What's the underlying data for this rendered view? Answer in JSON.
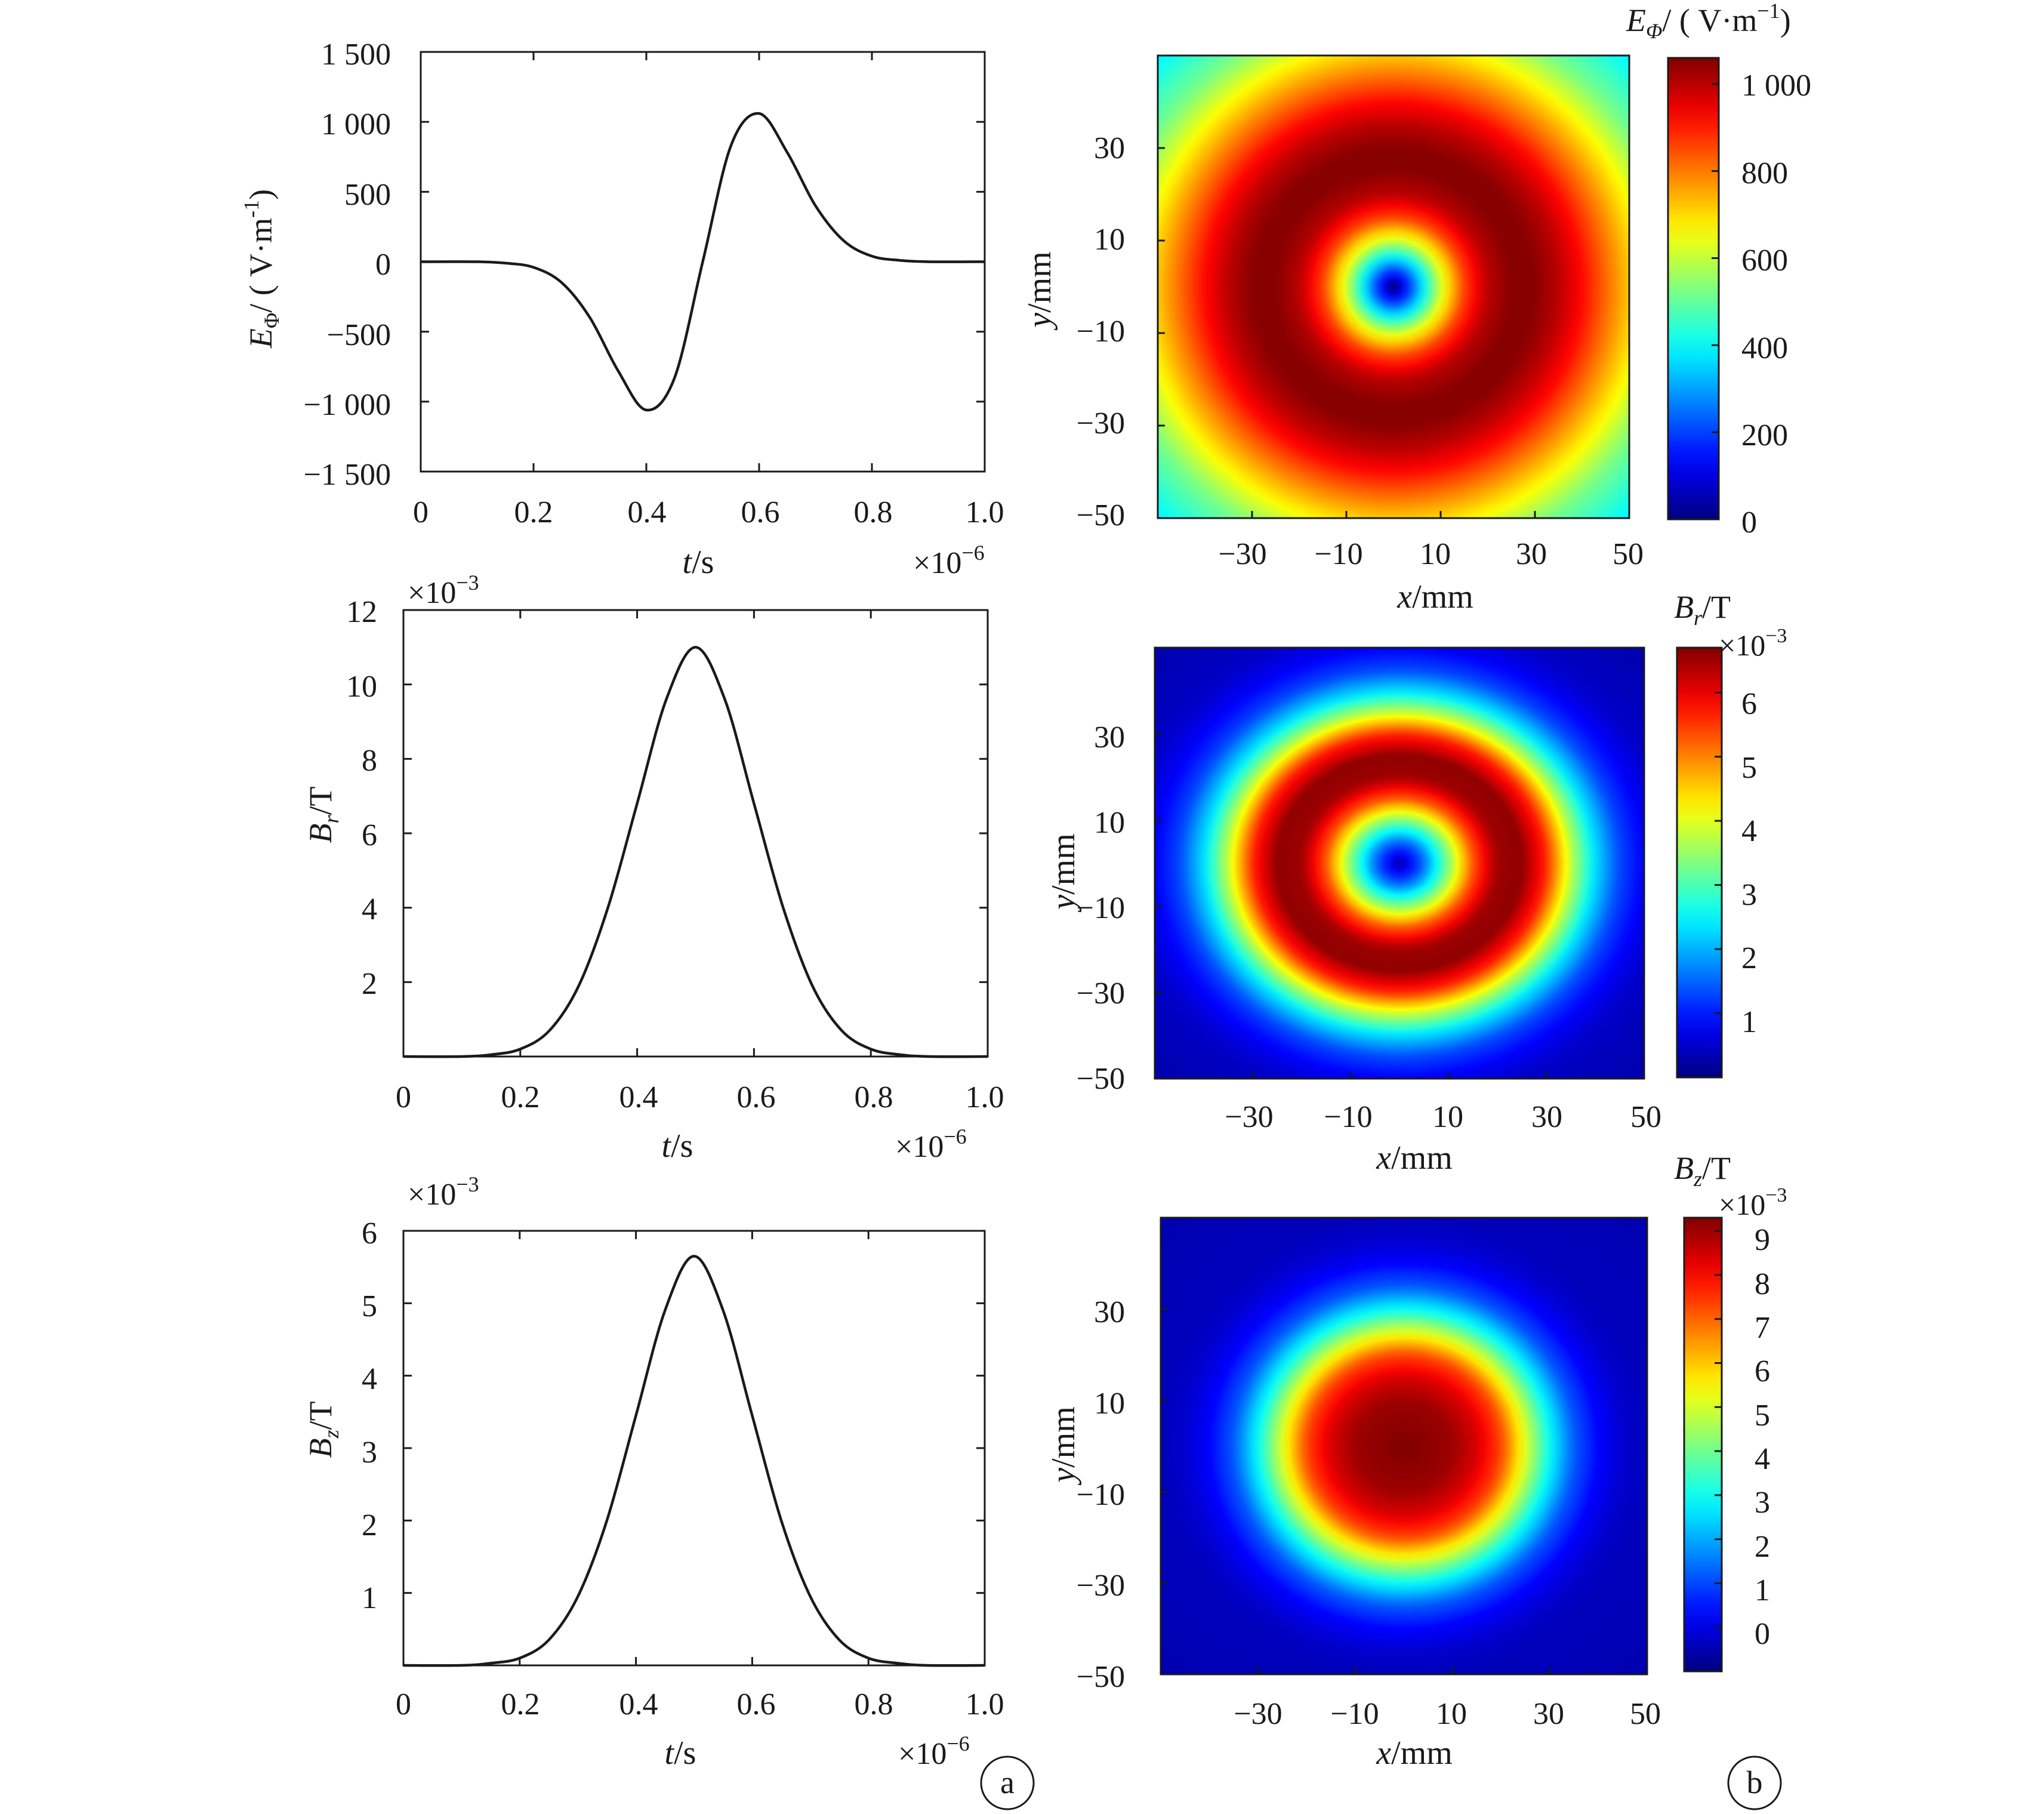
{
  "figure": {
    "panel_labels": [
      "a",
      "b"
    ]
  },
  "chart_data": [
    {
      "id": "ephi_time",
      "type": "line",
      "xlabel_base": "t",
      "xlabel_unit": "/s",
      "ylabel_base": "E",
      "ylabel_sub": "Φ",
      "ylabel_unit": "/ ( V·m",
      "ylabel_sup": "-1",
      "ylabel_close": ")",
      "xlim": [
        0,
        1.0
      ],
      "ylim": [
        -1500,
        1500
      ],
      "x_ticks": [
        "0",
        "0.2",
        "0.4",
        "0.6",
        "0.8",
        "1.0"
      ],
      "x_tick_values": [
        0,
        0.2,
        0.4,
        0.6,
        0.8,
        1.0
      ],
      "y_ticks": [
        "1 500",
        "1 000",
        "500",
        "0",
        "−500",
        "−1 000",
        "−1 500"
      ],
      "y_tick_values": [
        1500,
        1000,
        500,
        0,
        -500,
        -1000,
        -1500
      ],
      "x_multiplier_base": "×10",
      "x_multiplier_exp": "−6",
      "series": [
        {
          "x": [
            0,
            0.1,
            0.15,
            0.2,
            0.25,
            0.3,
            0.35,
            0.4,
            0.45,
            0.5,
            0.55,
            0.6,
            0.65,
            0.7,
            0.75,
            0.8,
            0.85,
            0.9,
            1.0
          ],
          "y": [
            0,
            0,
            -10,
            -40,
            -150,
            -400,
            -780,
            -1060,
            -830,
            0,
            830,
            1060,
            780,
            400,
            150,
            40,
            10,
            0,
            0
          ]
        }
      ]
    },
    {
      "id": "br_time",
      "type": "line",
      "xlabel_base": "t",
      "xlabel_unit": "/s",
      "ylabel_base": "B",
      "ylabel_sub": "r",
      "ylabel_unit": "/T",
      "xlim": [
        0,
        1.0
      ],
      "ylim": [
        0,
        12
      ],
      "x_ticks": [
        "0",
        "0.2",
        "0.4",
        "0.6",
        "0.8",
        "1.0"
      ],
      "x_tick_values": [
        0,
        0.2,
        0.4,
        0.6,
        0.8,
        1.0
      ],
      "y_ticks": [
        "12",
        "10",
        "8",
        "6",
        "4",
        "2"
      ],
      "y_tick_values": [
        12,
        10,
        8,
        6,
        4,
        2
      ],
      "x_multiplier_base": "×10",
      "x_multiplier_exp": "−6",
      "y_multiplier_base": "×10",
      "y_multiplier_exp": "−3",
      "series": [
        {
          "x": [
            0,
            0.1,
            0.15,
            0.2,
            0.25,
            0.3,
            0.35,
            0.4,
            0.45,
            0.5,
            0.55,
            0.6,
            0.65,
            0.7,
            0.75,
            0.8,
            0.85,
            0.9,
            1.0
          ],
          "y": [
            0,
            0,
            0.05,
            0.2,
            0.7,
            1.9,
            4.0,
            6.8,
            9.6,
            11.0,
            9.6,
            6.8,
            4.0,
            1.9,
            0.7,
            0.2,
            0.05,
            0,
            0
          ]
        }
      ]
    },
    {
      "id": "bz_time",
      "type": "line",
      "xlabel_base": "t",
      "xlabel_unit": "/s",
      "ylabel_base": "B",
      "ylabel_sub": "z",
      "ylabel_unit": "/T",
      "xlim": [
        0,
        1.0
      ],
      "ylim": [
        0,
        6
      ],
      "x_ticks": [
        "0",
        "0.2",
        "0.4",
        "0.6",
        "0.8",
        "1.0"
      ],
      "x_tick_values": [
        0,
        0.2,
        0.4,
        0.6,
        0.8,
        1.0
      ],
      "y_ticks": [
        "6",
        "5",
        "4",
        "3",
        "2",
        "1"
      ],
      "y_tick_values": [
        6,
        5,
        4,
        3,
        2,
        1
      ],
      "x_multiplier_base": "×10",
      "x_multiplier_exp": "−6",
      "y_multiplier_base": "×10",
      "y_multiplier_exp": "−3",
      "series": [
        {
          "x": [
            0,
            0.1,
            0.15,
            0.2,
            0.25,
            0.3,
            0.35,
            0.4,
            0.45,
            0.5,
            0.55,
            0.6,
            0.65,
            0.7,
            0.75,
            0.8,
            0.85,
            0.9,
            1.0
          ],
          "y": [
            0,
            0,
            0.03,
            0.1,
            0.35,
            0.95,
            2.0,
            3.45,
            4.9,
            5.65,
            4.9,
            3.45,
            2.0,
            0.95,
            0.35,
            0.1,
            0.03,
            0,
            0
          ]
        }
      ]
    },
    {
      "id": "ephi_map",
      "type": "heatmap",
      "colormap": "jet",
      "xlabel_base": "x",
      "xlabel_unit": "/mm",
      "ylabel_base": "y",
      "ylabel_unit": "/mm",
      "xlim": [
        -50,
        50
      ],
      "ylim": [
        -50,
        50
      ],
      "x_ticks": [
        "−30",
        "−10",
        "10",
        "30",
        "50"
      ],
      "x_tick_values": [
        -30,
        -10,
        10,
        30,
        50
      ],
      "y_ticks": [
        "30",
        "10",
        "−10",
        "−30",
        "−50"
      ],
      "y_tick_values": [
        30,
        10,
        -10,
        -30,
        -50
      ],
      "colorbar_title_base": "E",
      "colorbar_title_sub": "Φ",
      "colorbar_title_unit": "/ ( V·m",
      "colorbar_title_sup": "−1",
      "colorbar_title_close": ")",
      "colorbar_range": [
        0,
        1060
      ],
      "colorbar_ticks": [
        "1 000",
        "800",
        "600",
        "400",
        "200",
        "0"
      ],
      "colorbar_tick_values": [
        1000,
        800,
        600,
        400,
        200,
        0
      ],
      "radial_profile": {
        "r": [
          0,
          5,
          10,
          15,
          20,
          25,
          30,
          35,
          40,
          45,
          50,
          55,
          60,
          71
        ],
        "value": [
          0,
          300,
          620,
          860,
          1000,
          1050,
          1050,
          1000,
          920,
          820,
          720,
          620,
          520,
          380
        ]
      }
    },
    {
      "id": "br_map",
      "type": "heatmap",
      "colormap": "jet",
      "xlabel_base": "x",
      "xlabel_unit": "/mm",
      "ylabel_base": "y",
      "ylabel_unit": "/mm",
      "xlim": [
        -50,
        50
      ],
      "ylim": [
        -50,
        50
      ],
      "x_ticks": [
        "−30",
        "−10",
        "10",
        "30",
        "50"
      ],
      "x_tick_values": [
        -30,
        -10,
        10,
        30,
        50
      ],
      "y_ticks": [
        "30",
        "10",
        "−10",
        "−30",
        "−50"
      ],
      "y_tick_values": [
        30,
        10,
        -10,
        -30,
        -50
      ],
      "colorbar_title_base": "B",
      "colorbar_title_sub": "r",
      "colorbar_title_unit": "/T",
      "colorbar_multiplier_base": "×10",
      "colorbar_multiplier_exp": "−3",
      "colorbar_range": [
        0,
        6.7
      ],
      "colorbar_ticks": [
        "6",
        "5",
        "4",
        "3",
        "2",
        "1"
      ],
      "colorbar_tick_values": [
        6,
        5,
        4,
        3,
        2,
        1
      ],
      "radial_profile": {
        "r": [
          0,
          5,
          10,
          15,
          20,
          25,
          30,
          35,
          40,
          45,
          50,
          55,
          60,
          71
        ],
        "value": [
          0.3,
          1.6,
          3.4,
          5.3,
          6.5,
          6.6,
          5.6,
          3.8,
          2.3,
          1.3,
          0.8,
          0.5,
          0.4,
          0.3
        ]
      }
    },
    {
      "id": "bz_map",
      "type": "heatmap",
      "colormap": "jet",
      "xlabel_base": "x",
      "xlabel_unit": "/mm",
      "ylabel_base": "y",
      "ylabel_unit": "/mm",
      "xlim": [
        -50,
        50
      ],
      "ylim": [
        -50,
        50
      ],
      "x_ticks": [
        "−30",
        "−10",
        "10",
        "30",
        "50"
      ],
      "x_tick_values": [
        -30,
        -10,
        10,
        30,
        50
      ],
      "y_ticks": [
        "30",
        "10",
        "−10",
        "−30",
        "−50"
      ],
      "y_tick_values": [
        30,
        10,
        -10,
        -30,
        -50
      ],
      "colorbar_title_base": "B",
      "colorbar_title_sub": "z",
      "colorbar_title_unit": "/T",
      "colorbar_multiplier_base": "×10",
      "colorbar_multiplier_exp": "−3",
      "colorbar_range": [
        -1,
        9.3
      ],
      "colorbar_ticks": [
        "9",
        "8",
        "7",
        "6",
        "5",
        "4",
        "3",
        "2",
        "1",
        "0"
      ],
      "colorbar_tick_values": [
        9,
        8,
        7,
        6,
        5,
        4,
        3,
        2,
        1,
        0
      ],
      "radial_profile": {
        "r": [
          0,
          10,
          15,
          20,
          25,
          30,
          35,
          40,
          45,
          50,
          60,
          71
        ],
        "value": [
          9.3,
          9.0,
          8.4,
          7.3,
          5.1,
          2.9,
          1.2,
          0.3,
          -0.2,
          -0.4,
          -0.45,
          -0.5
        ]
      }
    }
  ]
}
